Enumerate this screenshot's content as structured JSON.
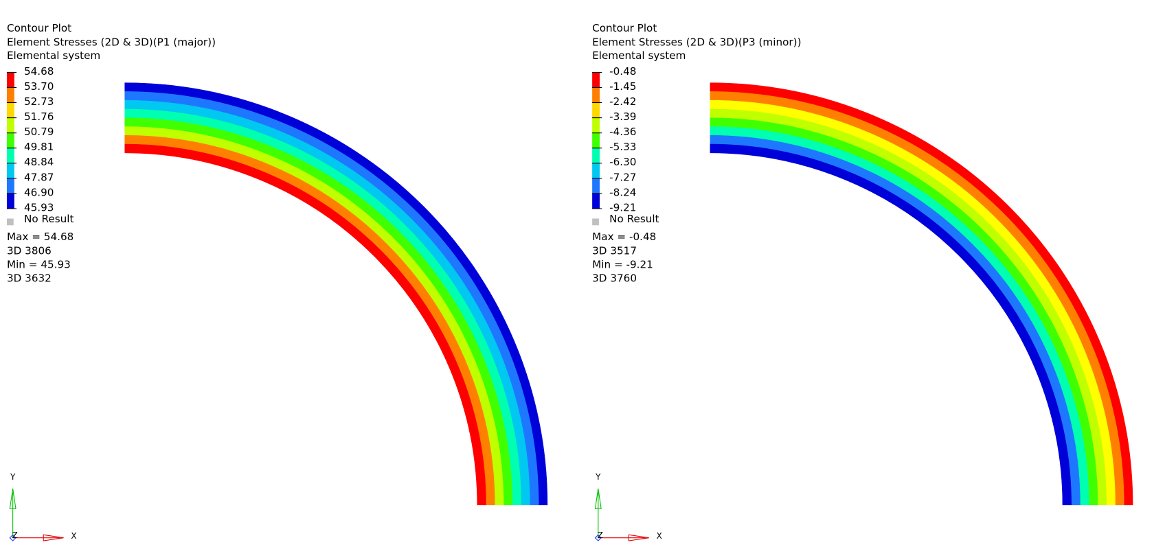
{
  "panels": [
    {
      "title": "Contour Plot",
      "subtitle": "Element Stresses (2D & 3D)(P1 (major))",
      "system": "Elemental system",
      "legend": {
        "labels": [
          "54.68",
          "53.70",
          "52.73",
          "51.76",
          "50.79",
          "49.81",
          "48.84",
          "47.87",
          "46.90",
          "45.93"
        ],
        "colors": [
          "#ff0000",
          "#ff8000",
          "#ffd800",
          "#c0ff00",
          "#40ff00",
          "#00ffb0",
          "#00c8f0",
          "#1e78ff",
          "#0000d8"
        ],
        "no_result": "No Result",
        "no_result_color": "#c0c0c0"
      },
      "stats": [
        "Max = 54.68",
        "3D 3806",
        "Min = 45.93",
        "3D 3632"
      ],
      "arc_colors": [
        "#0000d8",
        "#1e78ff",
        "#00c8f0",
        "#00ffb0",
        "#40ff00",
        "#c0ff00",
        "#ff8000",
        "#ff0000"
      ]
    },
    {
      "title": "Contour Plot",
      "subtitle": "Element Stresses (2D & 3D)(P3 (minor))",
      "system": "Elemental system",
      "legend": {
        "labels": [
          "-0.48",
          "-1.45",
          "-2.42",
          "-3.39",
          "-4.36",
          "-5.33",
          "-6.30",
          "-7.27",
          "-8.24",
          "-9.21"
        ],
        "colors": [
          "#ff0000",
          "#ff8000",
          "#ffd800",
          "#c0ff00",
          "#40ff00",
          "#00ffb0",
          "#00c8f0",
          "#1e78ff",
          "#0000d8"
        ],
        "no_result": "No Result",
        "no_result_color": "#c0c0c0"
      },
      "stats": [
        "Max = -0.48",
        "3D 3517",
        "Min = -9.21",
        "3D 3760"
      ],
      "arc_colors": [
        "#ff0000",
        "#ff8000",
        "#ffff00",
        "#c0ff00",
        "#40ff00",
        "#00ffb0",
        "#1e78ff",
        "#0000d8"
      ]
    }
  ],
  "triad": {
    "x": "X",
    "y": "Y",
    "z": "Z"
  }
}
